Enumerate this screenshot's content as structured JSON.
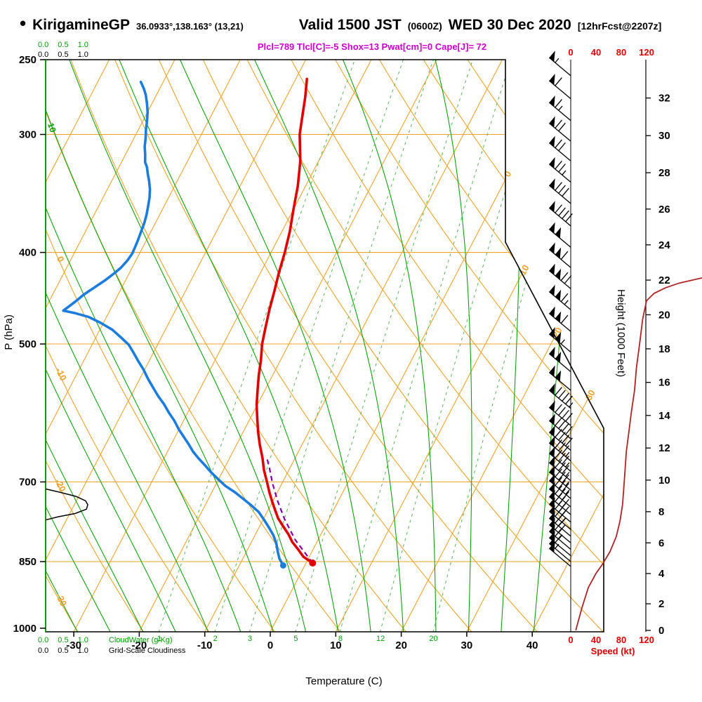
{
  "header": {
    "bullet": "•",
    "station": "KirigamineGP",
    "coords": "36.0933°,138.163° (13,21)",
    "valid_label": "Valid 1500 JST",
    "valid_utc": "(0600Z)",
    "valid_date": "WED 30 Dec 2020",
    "forecast_note": "[12hrFcst@2207z]",
    "stats": "Plcl=789 Tlcl[C]=-5 Shox=13 Pwat[cm]=0 Cape[J]= 72"
  },
  "colors": {
    "grid_orange": "#efa428",
    "moist_green": "#00a000",
    "mixing_green": "#55b855",
    "temp_red": "#e00000",
    "dewpoint_blue": "#1b7ce0",
    "parcel_purple": "#8800aa",
    "speed_darkred": "#b22222",
    "stats_magenta": "#cc00cc",
    "axis_black": "#000000"
  },
  "chart_data": {
    "type": "line",
    "subtype": "skew-t-log-p-sounding",
    "title": "KirigamineGP 36.0933°,138.163° (13,21) Valid 1500 JST (0600Z) WED 30 Dec 2020 [12hrFcst@2207z]",
    "axes": {
      "pressure": {
        "label": "P (hPa)",
        "scale": "log",
        "range": [
          250,
          1008
        ],
        "ticks": [
          250,
          300,
          400,
          500,
          700,
          850,
          1000
        ]
      },
      "temperature": {
        "label": "Temperature (C)",
        "ticks": [
          -30,
          -20,
          -10,
          0,
          10,
          20,
          30,
          40
        ]
      },
      "height": {
        "label": "Height (1000 Feet)",
        "ticks": [
          0,
          2,
          4,
          6,
          8,
          10,
          12,
          14,
          16,
          18,
          20,
          22,
          24,
          26,
          28,
          30,
          32
        ]
      },
      "speed": {
        "label": "Speed (kt)",
        "ticks": [
          0,
          40,
          80,
          120
        ]
      },
      "cloud_water": {
        "label": "CloudWater (g/Kg)",
        "ticks": [
          "0.0",
          "0.5",
          "1.0"
        ]
      },
      "cloudiness": {
        "label": "Grid-Scale Cloudiness",
        "ticks": [
          "0.0",
          "0.5",
          "1.0"
        ]
      }
    },
    "grid": {
      "isobars": [
        300,
        400,
        500,
        700,
        850
      ],
      "isotherms_c": [
        -110,
        -100,
        -90,
        -80,
        -70,
        -60,
        -50,
        -40,
        -30,
        -20,
        -10,
        0,
        10,
        20,
        30,
        40
      ],
      "dry_adiabats_c": [
        -30,
        -20,
        -10,
        0,
        10,
        20,
        30,
        40,
        50,
        60,
        70,
        80,
        90,
        100,
        110,
        120,
        130,
        140,
        150
      ],
      "moist_adiabats_c": [
        -30,
        -25,
        -20,
        -15,
        -10,
        -5,
        0,
        5,
        10,
        15,
        20,
        25,
        30,
        35,
        40
      ],
      "mixing_ratio_gkg": [
        1,
        2,
        3,
        5,
        8,
        12,
        20
      ],
      "isotherm_label_values": [
        0,
        10,
        20,
        30
      ],
      "dry_adiabat_label_values": [
        0,
        -10,
        -20,
        -30
      ],
      "moist_adiabat_label": "10"
    },
    "series": {
      "temperature_p_c": [
        [
          853,
          1.0
        ],
        [
          840,
          -0.9
        ],
        [
          825,
          -2.3
        ],
        [
          810,
          -3.8
        ],
        [
          796,
          -4.9
        ],
        [
          780,
          -6.4
        ],
        [
          765,
          -7.8
        ],
        [
          750,
          -8.9
        ],
        [
          735,
          -10.0
        ],
        [
          718,
          -11.2
        ],
        [
          700,
          -12.4
        ],
        [
          680,
          -13.8
        ],
        [
          660,
          -15.0
        ],
        [
          640,
          -16.4
        ],
        [
          620,
          -17.7
        ],
        [
          600,
          -18.9
        ],
        [
          580,
          -20.1
        ],
        [
          560,
          -21.1
        ],
        [
          540,
          -22.1
        ],
        [
          520,
          -23.0
        ],
        [
          500,
          -24.1
        ],
        [
          480,
          -24.9
        ],
        [
          460,
          -25.7
        ],
        [
          440,
          -26.4
        ],
        [
          420,
          -27.2
        ],
        [
          400,
          -27.9
        ],
        [
          380,
          -28.8
        ],
        [
          360,
          -30.0
        ],
        [
          340,
          -31.2
        ],
        [
          320,
          -32.8
        ],
        [
          300,
          -35.0
        ],
        [
          285,
          -36.2
        ],
        [
          274,
          -37.1
        ],
        [
          262,
          -38.3
        ]
      ],
      "dewpoint_p_c": [
        [
          858,
          -3.3
        ],
        [
          844,
          -4.4
        ],
        [
          830,
          -5.2
        ],
        [
          813,
          -6.1
        ],
        [
          797,
          -7.2
        ],
        [
          782,
          -8.5
        ],
        [
          767,
          -9.9
        ],
        [
          753,
          -11.3
        ],
        [
          740,
          -13.1
        ],
        [
          728,
          -14.9
        ],
        [
          717,
          -16.6
        ],
        [
          707,
          -18.4
        ],
        [
          695,
          -20.1
        ],
        [
          683,
          -21.8
        ],
        [
          672,
          -23.2
        ],
        [
          661,
          -24.7
        ],
        [
          650,
          -26.1
        ],
        [
          638,
          -27.4
        ],
        [
          627,
          -28.7
        ],
        [
          616,
          -30.0
        ],
        [
          603,
          -31.4
        ],
        [
          591,
          -32.9
        ],
        [
          579,
          -34.3
        ],
        [
          568,
          -35.8
        ],
        [
          556,
          -37.3
        ],
        [
          544,
          -38.8
        ],
        [
          532,
          -40.2
        ],
        [
          521,
          -41.7
        ],
        [
          511,
          -43.0
        ],
        [
          501,
          -44.4
        ],
        [
          492,
          -46.2
        ],
        [
          483,
          -48.1
        ],
        [
          475,
          -50.4
        ],
        [
          468,
          -52.8
        ],
        [
          464,
          -55.0
        ],
        [
          461,
          -57.1
        ],
        [
          452,
          -56.1
        ],
        [
          443,
          -55.2
        ],
        [
          435,
          -54.1
        ],
        [
          428,
          -53.1
        ],
        [
          421,
          -52.3
        ],
        [
          415,
          -51.7
        ],
        [
          408,
          -51.3
        ],
        [
          401,
          -51.1
        ],
        [
          394,
          -51.2
        ],
        [
          388,
          -51.3
        ],
        [
          380,
          -51.5
        ],
        [
          372,
          -51.7
        ],
        [
          365,
          -52.0
        ],
        [
          358,
          -52.4
        ],
        [
          350,
          -52.9
        ],
        [
          343,
          -53.5
        ],
        [
          336,
          -54.3
        ],
        [
          330,
          -55.1
        ],
        [
          325,
          -55.7
        ],
        [
          321,
          -56.4
        ],
        [
          315,
          -57.0
        ],
        [
          309,
          -57.7
        ],
        [
          303,
          -58.2
        ],
        [
          297,
          -58.8
        ],
        [
          290,
          -59.4
        ],
        [
          284,
          -60.0
        ],
        [
          278,
          -60.8
        ],
        [
          272,
          -61.7
        ],
        [
          268,
          -62.5
        ],
        [
          264,
          -63.4
        ]
      ],
      "parcel_p_c": [
        [
          853,
          1.0
        ],
        [
          806,
          -3.5
        ],
        [
          766,
          -6.8
        ],
        [
          734,
          -9.2
        ],
        [
          703,
          -11.4
        ],
        [
          677,
          -13.1
        ],
        [
          662,
          -14.2
        ]
      ],
      "wind_speed_p_kt": [
        [
          1005,
          8
        ],
        [
          950,
          18
        ],
        [
          905,
          28
        ],
        [
          875,
          40
        ],
        [
          856,
          50
        ],
        [
          830,
          62
        ],
        [
          800,
          72
        ],
        [
          770,
          78
        ],
        [
          740,
          82
        ],
        [
          710,
          84
        ],
        [
          680,
          86
        ],
        [
          650,
          88
        ],
        [
          620,
          92
        ],
        [
          590,
          96
        ],
        [
          560,
          101
        ],
        [
          530,
          104
        ],
        [
          500,
          109
        ],
        [
          470,
          114
        ],
        [
          450,
          120
        ],
        [
          442,
          132
        ],
        [
          436,
          150
        ],
        [
          431,
          172
        ],
        [
          428,
          192
        ],
        [
          425,
          212
        ]
      ],
      "cloudiness_p_frac": [
        [
          712,
          0
        ],
        [
          718,
          0.35
        ],
        [
          725,
          0.72
        ],
        [
          733,
          0.95
        ],
        [
          740,
          1.0
        ],
        [
          748,
          0.97
        ],
        [
          756,
          0.7
        ],
        [
          762,
          0.3
        ],
        [
          768,
          0
        ]
      ],
      "wind_barbs": [
        {
          "p": 260,
          "kt": 55,
          "dir": 310
        },
        {
          "p": 275,
          "kt": 60,
          "dir": 310
        },
        {
          "p": 290,
          "kt": 65,
          "dir": 310
        },
        {
          "p": 305,
          "kt": 70,
          "dir": 310
        },
        {
          "p": 320,
          "kt": 70,
          "dir": 310
        },
        {
          "p": 337,
          "kt": 75,
          "dir": 310
        },
        {
          "p": 355,
          "kt": 80,
          "dir": 310
        },
        {
          "p": 375,
          "kt": 90,
          "dir": 310
        },
        {
          "p": 395,
          "kt": 100,
          "dir": 310
        },
        {
          "p": 415,
          "kt": 110,
          "dir": 310
        },
        {
          "p": 437,
          "kt": 120,
          "dir": 310
        },
        {
          "p": 460,
          "kt": 115,
          "dir": 310
        },
        {
          "p": 485,
          "kt": 110,
          "dir": 310
        },
        {
          "p": 510,
          "kt": 105,
          "dir": 310
        },
        {
          "p": 535,
          "kt": 100,
          "dir": 310
        },
        {
          "p": 560,
          "kt": 98,
          "dir": 310
        },
        {
          "p": 585,
          "kt": 95,
          "dir": 310
        },
        {
          "p": 610,
          "kt": 92,
          "dir": 310
        },
        {
          "p": 630,
          "kt": 90,
          "dir": 310
        },
        {
          "p": 648,
          "kt": 88,
          "dir": 310
        },
        {
          "p": 665,
          "kt": 87,
          "dir": 310
        },
        {
          "p": 682,
          "kt": 86,
          "dir": 310
        },
        {
          "p": 698,
          "kt": 85,
          "dir": 310
        },
        {
          "p": 714,
          "kt": 84,
          "dir": 310
        },
        {
          "p": 729,
          "kt": 83,
          "dir": 310
        },
        {
          "p": 744,
          "kt": 82,
          "dir": 310
        },
        {
          "p": 758,
          "kt": 80,
          "dir": 310
        },
        {
          "p": 772,
          "kt": 78,
          "dir": 310
        },
        {
          "p": 786,
          "kt": 75,
          "dir": 310
        },
        {
          "p": 799,
          "kt": 72,
          "dir": 310
        },
        {
          "p": 812,
          "kt": 68,
          "dir": 310
        },
        {
          "p": 825,
          "kt": 64,
          "dir": 310
        },
        {
          "p": 838,
          "kt": 58,
          "dir": 310
        },
        {
          "p": 850,
          "kt": 53,
          "dir": 310
        },
        {
          "p": 860,
          "kt": 48,
          "dir": 310
        }
      ],
      "markers": {
        "surface_temp": {
          "p": 853,
          "t": 1.0
        },
        "surface_dewpoint": {
          "p": 858,
          "t": -3.3
        }
      }
    }
  }
}
